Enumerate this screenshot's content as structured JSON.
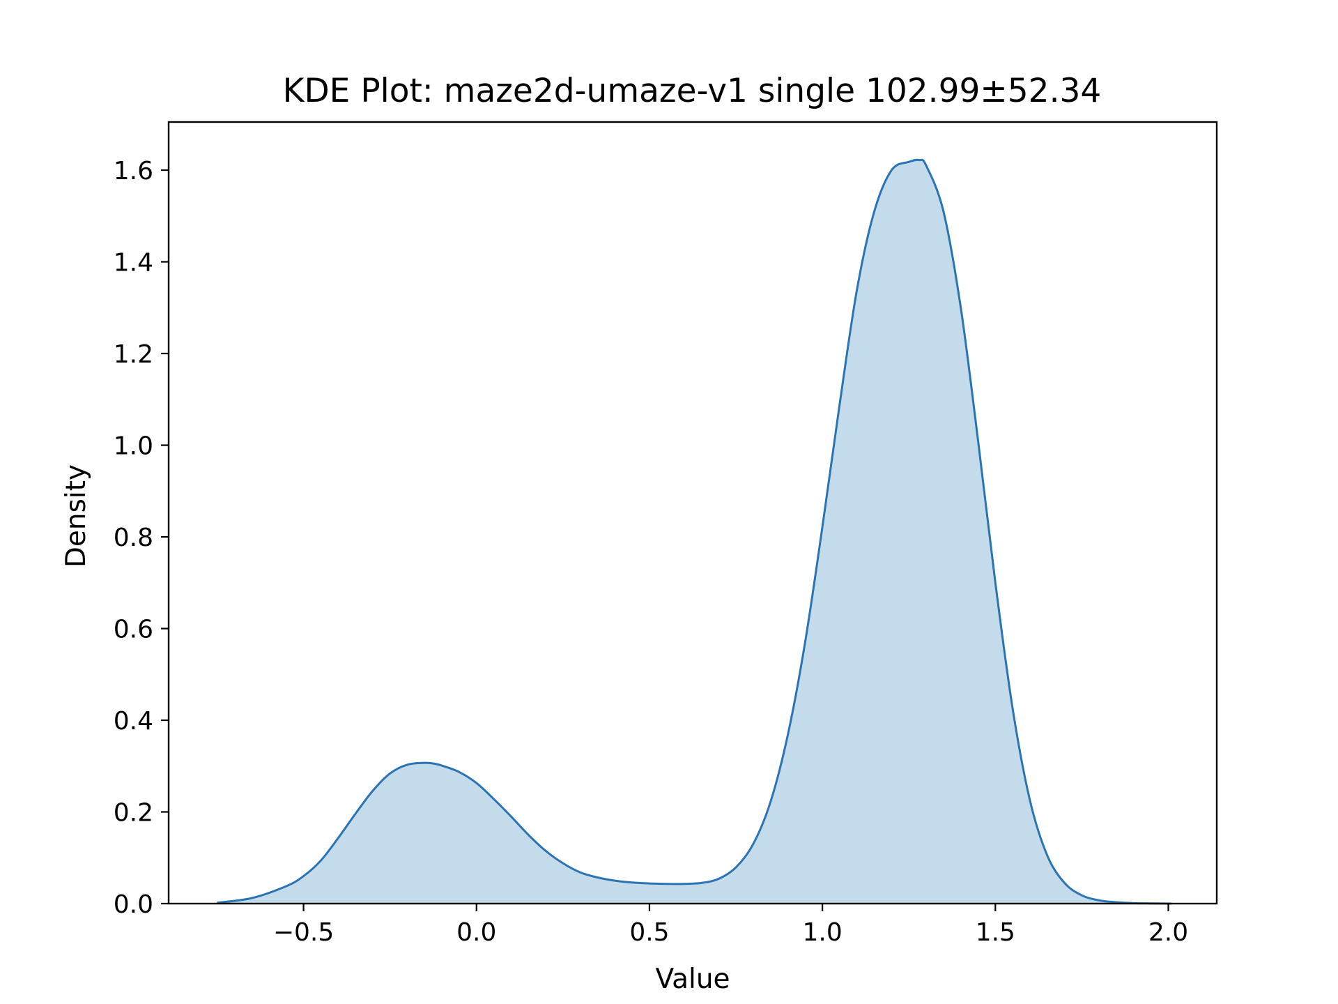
{
  "chart_data": {
    "type": "area",
    "title": "KDE Plot: maze2d-umaze-v1 single 102.99±52.34",
    "xlabel": "Value",
    "ylabel": "Density",
    "xlim": [
      -0.89,
      2.14
    ],
    "ylim": [
      0,
      1.705
    ],
    "xticks": [
      -0.5,
      0.0,
      0.5,
      1.0,
      1.5,
      2.0
    ],
    "xtick_labels": [
      "−0.5",
      "0.0",
      "0.5",
      "1.0",
      "1.5",
      "2.0"
    ],
    "yticks": [
      0.0,
      0.2,
      0.4,
      0.6,
      0.8,
      1.0,
      1.2,
      1.4,
      1.6
    ],
    "ytick_labels": [
      "0.0",
      "0.2",
      "0.4",
      "0.6",
      "0.8",
      "1.0",
      "1.2",
      "1.4",
      "1.6"
    ],
    "grid": false,
    "colors": {
      "line": "#2a74b3",
      "fill": "#c4dbec"
    },
    "series": [
      {
        "x": [
          -0.75,
          -0.65,
          -0.55,
          -0.5,
          -0.45,
          -0.4,
          -0.35,
          -0.3,
          -0.25,
          -0.2,
          -0.15,
          -0.12,
          -0.1,
          -0.05,
          0.0,
          0.05,
          0.1,
          0.15,
          0.2,
          0.25,
          0.3,
          0.35,
          0.4,
          0.45,
          0.5,
          0.55,
          0.6,
          0.65,
          0.7,
          0.75,
          0.8,
          0.85,
          0.9,
          0.95,
          1.0,
          1.05,
          1.1,
          1.15,
          1.2,
          1.25,
          1.28,
          1.3,
          1.35,
          1.4,
          1.45,
          1.5,
          1.55,
          1.6,
          1.65,
          1.7,
          1.75,
          1.8,
          1.85,
          1.9,
          1.95,
          2.01
        ],
        "y": [
          0.002,
          0.012,
          0.038,
          0.06,
          0.094,
          0.143,
          0.196,
          0.246,
          0.284,
          0.303,
          0.307,
          0.305,
          0.301,
          0.287,
          0.263,
          0.228,
          0.19,
          0.15,
          0.115,
          0.088,
          0.068,
          0.057,
          0.05,
          0.046,
          0.044,
          0.043,
          0.043,
          0.045,
          0.054,
          0.079,
          0.13,
          0.222,
          0.368,
          0.57,
          0.822,
          1.09,
          1.34,
          1.51,
          1.6,
          1.618,
          1.622,
          1.61,
          1.51,
          1.3,
          1.01,
          0.7,
          0.425,
          0.225,
          0.105,
          0.045,
          0.018,
          0.007,
          0.003,
          0.001,
          0.0004,
          0.0
        ]
      }
    ]
  }
}
